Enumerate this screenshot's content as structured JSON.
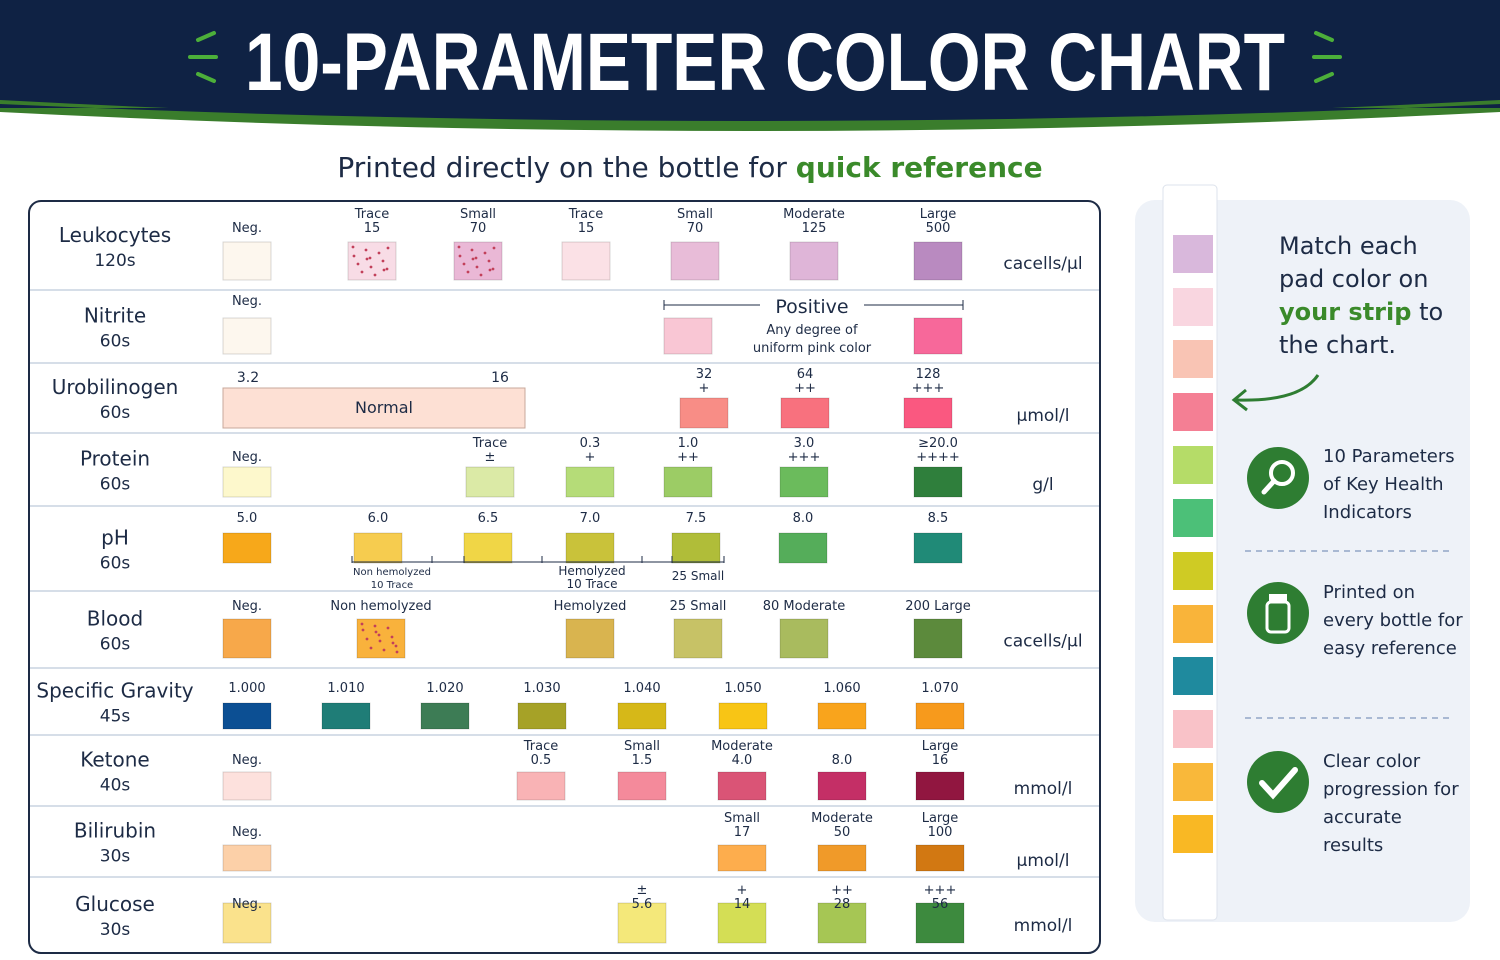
{
  "header": {
    "title": "10-PARAMETER COLOR CHART"
  },
  "subtitle": {
    "text": "Printed directly on the bottle for",
    "highlight": "quick reference"
  },
  "table": {
    "rows": [
      {
        "name": "Leukocytes",
        "time": "120s",
        "unit": "cacells/µl",
        "pads": [
          {
            "label": [
              "Neg."
            ],
            "color": "#fdf7ee"
          },
          {
            "label": [
              "Trace",
              "15"
            ],
            "color": "#f8dce6",
            "speckled": true
          },
          {
            "label": [
              "Small",
              "70"
            ],
            "color": "#eab8d6",
            "speckled": true
          },
          {
            "label": [
              "Trace",
              "15"
            ],
            "color": "#fbe1e6"
          },
          {
            "label": [
              "Small",
              "70"
            ],
            "color": "#e8bcd8"
          },
          {
            "label": [
              "Moderate",
              "125"
            ],
            "color": "#dfb5d8"
          },
          {
            "label": [
              "Large",
              "500"
            ],
            "color": "#b98ac0"
          }
        ]
      },
      {
        "name": "Nitrite",
        "time": "60s",
        "pads": [
          {
            "label": [
              "Neg."
            ],
            "color": "#fdf7ee"
          },
          {
            "color": "#f9c6d4"
          },
          {
            "color": "#f7689a"
          }
        ],
        "positive": {
          "title": "Positive",
          "note": [
            "Any degree of",
            "uniform pink color"
          ]
        }
      },
      {
        "name": "Urobilinogen",
        "time": "60s",
        "unit": "µmol/l",
        "range": {
          "from": "3.2",
          "to": "16",
          "label": "Normal",
          "color": "#fde0d4"
        },
        "pads": [
          {
            "label": [
              "32",
              "+"
            ],
            "color": "#f88d86"
          },
          {
            "label": [
              "64",
              "++"
            ],
            "color": "#f8717e"
          },
          {
            "label": [
              "128",
              "+++"
            ],
            "color": "#fa5880"
          }
        ]
      },
      {
        "name": "Protein",
        "time": "60s",
        "unit": "g/l",
        "pads": [
          {
            "label": [
              "Neg."
            ],
            "color": "#fdf8cc"
          },
          {
            "label": [
              "Trace",
              "±"
            ],
            "color": "#dbeaa6"
          },
          {
            "label": [
              "0.3",
              "+"
            ],
            "color": "#b5dc78"
          },
          {
            "label": [
              "1.0",
              "++"
            ],
            "color": "#9ccc65"
          },
          {
            "label": [
              "3.0",
              "+++"
            ],
            "color": "#6bbb5c"
          },
          {
            "label": [
              "≥20.0",
              "++++"
            ],
            "color": "#2f7f3c"
          }
        ]
      },
      {
        "name": "pH",
        "time": "60s",
        "pads": [
          {
            "label": [
              "5.0"
            ],
            "color": "#f7a81a"
          },
          {
            "label": [
              "6.0"
            ],
            "color": "#f6cc4f"
          },
          {
            "label": [
              "6.5"
            ],
            "color": "#f0d646"
          },
          {
            "label": [
              "7.0"
            ],
            "color": "#c9c23a"
          },
          {
            "label": [
              "7.5"
            ],
            "color": "#b0bd39"
          },
          {
            "label": [
              "8.0"
            ],
            "color": "#55ad5a"
          },
          {
            "label": [
              "8.5"
            ],
            "color": "#208a77"
          }
        ],
        "notes": [
          {
            "text": [
              "Non hemolyzed",
              "10 Trace"
            ]
          },
          {
            "text": [
              "Hemolyzed",
              "10 Trace"
            ]
          },
          {
            "text": [
              "25 Small"
            ]
          }
        ]
      },
      {
        "name": "Blood",
        "time": "60s",
        "unit": "cacells/µl",
        "pads": [
          {
            "label": [
              "Neg."
            ],
            "color": "#f7a84a"
          },
          {
            "label": [
              "Non hemolyzed"
            ],
            "color": "#f9b23c",
            "speckled": true
          },
          {
            "label": [
              "Hemolyzed"
            ],
            "color": "#d9b44f"
          },
          {
            "label": [
              "25 Small"
            ],
            "color": "#c7c266"
          },
          {
            "label": [
              "80 Moderate"
            ],
            "color": "#a9bb5e"
          },
          {
            "label": [
              "200 Large"
            ],
            "color": "#5c8a3c"
          }
        ]
      },
      {
        "name": "Specific Gravity",
        "time": "45s",
        "pads": [
          {
            "label": [
              "1.000"
            ],
            "color": "#0c4f93"
          },
          {
            "label": [
              "1.010"
            ],
            "color": "#1f7d77"
          },
          {
            "label": [
              "1.020"
            ],
            "color": "#3d7c55"
          },
          {
            "label": [
              "1.030"
            ],
            "color": "#a6a227"
          },
          {
            "label": [
              "1.040"
            ],
            "color": "#d6b818"
          },
          {
            "label": [
              "1.050"
            ],
            "color": "#f8c515"
          },
          {
            "label": [
              "1.060"
            ],
            "color": "#f9a41c"
          },
          {
            "label": [
              "1.070"
            ],
            "color": "#f79a1c"
          }
        ]
      },
      {
        "name": "Ketone",
        "time": "40s",
        "unit": "mmol/l",
        "pads": [
          {
            "label": [
              "Neg."
            ],
            "color": "#fde1dd"
          },
          {
            "label": [
              "Trace",
              "0.5"
            ],
            "color": "#f9b3b5"
          },
          {
            "label": [
              "Small",
              "1.5"
            ],
            "color": "#f48a9b"
          },
          {
            "label": [
              "Moderate",
              "4.0"
            ],
            "color": "#da5476"
          },
          {
            "label": [
              "8.0"
            ],
            "color": "#c42f66"
          },
          {
            "label": [
              "Large",
              "16"
            ],
            "color": "#911640"
          }
        ]
      },
      {
        "name": "Bilirubin",
        "time": "30s",
        "unit": "µmol/l",
        "pads": [
          {
            "label": [
              "Neg."
            ],
            "color": "#fcd0a8"
          },
          {
            "label": [
              "Small",
              "17"
            ],
            "color": "#fdad4d"
          },
          {
            "label": [
              "Moderate",
              "50"
            ],
            "color": "#f09a29"
          },
          {
            "label": [
              "Large",
              "100"
            ],
            "color": "#d27812"
          }
        ]
      },
      {
        "name": "Glucose",
        "time": "30s",
        "unit": "mmol/l",
        "pads": [
          {
            "label": [
              "Neg."
            ],
            "color": "#fae28c"
          },
          {
            "label": [
              "±",
              "5.6"
            ],
            "color": "#f4e87a"
          },
          {
            "label": [
              "+",
              "14"
            ],
            "color": "#d4de55"
          },
          {
            "label": [
              "++",
              "28"
            ],
            "color": "#a6c654"
          },
          {
            "label": [
              "+++",
              "56"
            ],
            "color": "#3d8a3e"
          }
        ]
      }
    ]
  },
  "panel": {
    "intro": {
      "before": "Match each pad color on",
      "highlight": "your strip",
      "after": "to the chart."
    },
    "features": [
      "10 Parameters of Key Health Indicators",
      "Printed on every bottle for easy reference",
      "Clear color progression for accurate results"
    ]
  }
}
